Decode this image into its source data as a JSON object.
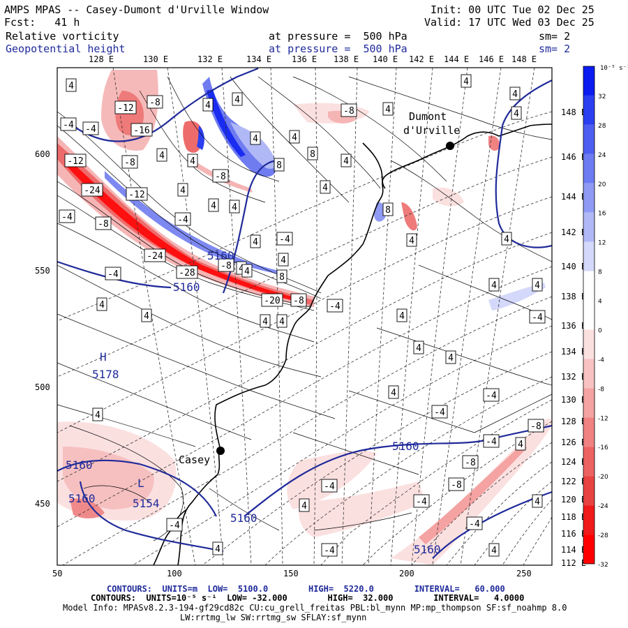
{
  "header": {
    "left_line1": "AMPS MPAS -- Casey-Dumont d'Urville Window",
    "left_line2": "Fcst:   41 h",
    "right_line1": "Init: 00 UTC Tue 02 Dec 25",
    "right_line2": "Valid: 17 UTC Wed 03 Dec 25"
  },
  "fields": {
    "field1_name": "Relative vorticity",
    "field1_level": "at pressure =  500 hPa",
    "field1_sm": "sm= 2",
    "field2_name": "Geopotential height",
    "field2_level": "at pressure =  500 hPa",
    "field2_sm": "sm= 2"
  },
  "axes": {
    "lon_top": [
      "128 E",
      "130 E",
      "132 E",
      "134 E",
      "136 E",
      "138 E",
      "140 E",
      "142 E",
      "144 E",
      "146 E",
      "148 E"
    ],
    "lon_right": [
      "148 E",
      "146 E",
      "144 E",
      "142 E",
      "140 E",
      "138 E",
      "136 E",
      "134 E",
      "132 E",
      "130 E",
      "128 E",
      "126 E",
      "124 E",
      "122 E",
      "120 E",
      "118 E",
      "116 E",
      "114 E",
      "112 E"
    ],
    "y_left": [
      "600",
      "550",
      "500",
      "450"
    ],
    "x_bottom": [
      "50",
      "100",
      "150",
      "200",
      "250"
    ]
  },
  "colorbar": {
    "unit": "10⁻⁵ s⁻¹",
    "labels": [
      "32",
      "28",
      "24",
      "20",
      "16",
      "12",
      "8",
      "4",
      "0",
      "-4",
      "-8",
      "-12",
      "-16",
      "-20",
      "-24",
      "-28",
      "-32"
    ],
    "colors": [
      "#0a1cf0",
      "#2b3ff0",
      "#4d5ef0",
      "#6e7cf2",
      "#8f9af4",
      "#b0b8f6",
      "#d4d8fa",
      "#ffffff",
      "#ffffff",
      "#fbe0e0",
      "#f8c2c2",
      "#f4a2a2",
      "#f08282",
      "#ec6262",
      "#e84242",
      "#f01a1a",
      "#ff0000"
    ]
  },
  "places": {
    "casey": "Casey",
    "dumont": "Dumont",
    "durville": "d'Urville"
  },
  "height_labels": {
    "h_mark": "H",
    "h_value": "5178",
    "l_mark": "L",
    "l_value": "5154",
    "c1": "5160",
    "c2": "5160",
    "c3": "5160",
    "c4": "5160",
    "c5": "5160",
    "c6": "5160",
    "c7": "5160"
  },
  "vort_labels": [
    "4",
    "-4",
    "-12",
    "-8",
    "-16",
    "-4",
    "-12",
    "-8",
    "-24",
    "-12",
    "4",
    "4",
    "-4",
    "-8",
    "-24",
    "-28",
    "-8",
    "4",
    "-20",
    "-8",
    "-4",
    "4",
    "-4",
    "4",
    "-8",
    "4",
    "4",
    "8",
    "8",
    "4",
    "4",
    "4",
    "4",
    "4",
    "4",
    "8",
    "4",
    "4",
    "-4",
    "4",
    "-8",
    "4",
    "4",
    "4",
    "8",
    "4",
    "-4",
    "4",
    "4",
    "4",
    "4",
    "4",
    "4",
    "-4",
    "4",
    "4",
    "4",
    "-8",
    "4",
    "4",
    "-4",
    "-4",
    "-8",
    "-4",
    "4",
    "4",
    "-4",
    "-4",
    "4",
    "-4",
    "-8",
    "-4",
    "-4",
    "4",
    "4",
    "4"
  ],
  "footer": {
    "line1": "CONTOURS:  UNITS=m  LOW=  5100.0        HIGH=  5220.0        INTERVAL=   60.000",
    "line2": "CONTOURS:  UNITS=10⁻⁵ s⁻¹  LOW= -32.000        HIGH=  32.000        INTERVAL=   4.0000",
    "line3": "Model Info: MPASv8.2.3-194-gf29cd82c CU:cu_grell_freitas PBL:bl_mynn MP:mp_thompson SF:sf_noahmp 8.0",
    "line4": "LW:rrtmg_lw SW:rrtmg_sw SFLAY:sf_mynn"
  }
}
